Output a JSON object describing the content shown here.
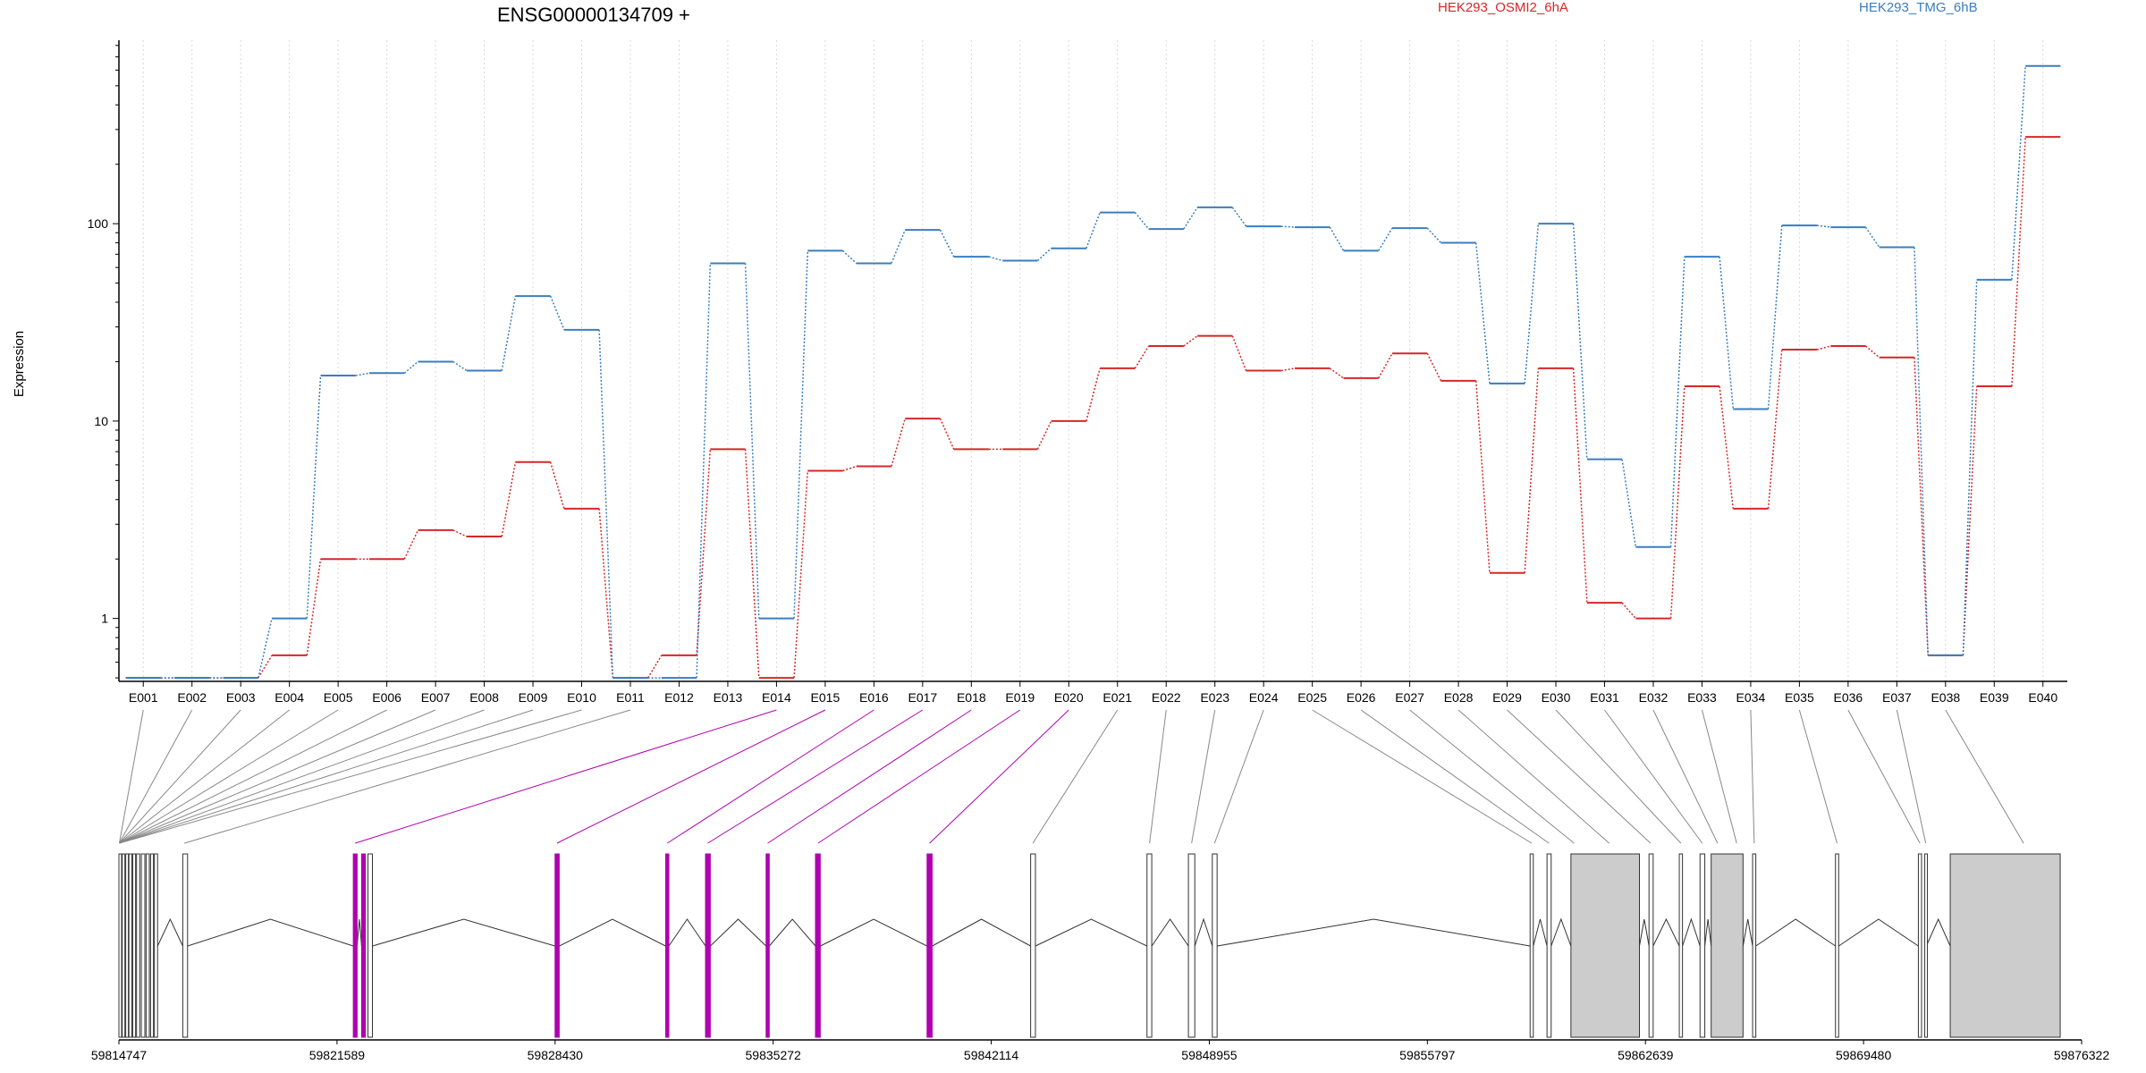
{
  "chart_data": {
    "type": "line",
    "title": "ENSG00000134709 +",
    "xlabel": "",
    "ylabel": "Expression",
    "y_scale": "log",
    "ylim": [
      0.48,
      850
    ],
    "y_ticks": [
      1,
      10,
      100
    ],
    "y_tick_labels": [
      "1",
      "10",
      "100"
    ],
    "grid": "vertical dotted per exon",
    "legend_position": "top",
    "categories": [
      "E001",
      "E002",
      "E003",
      "E004",
      "E005",
      "E006",
      "E007",
      "E008",
      "E009",
      "E010",
      "E011",
      "E012",
      "E013",
      "E014",
      "E015",
      "E016",
      "E017",
      "E018",
      "E019",
      "E020",
      "E021",
      "E022",
      "E023",
      "E024",
      "E025",
      "E026",
      "E027",
      "E028",
      "E029",
      "E030",
      "E031",
      "E032",
      "E033",
      "E034",
      "E035",
      "E036",
      "E037",
      "E038",
      "E039",
      "E040"
    ],
    "series": [
      {
        "name": "HEK293_OSMI2_6hA",
        "color": "#d62728",
        "values": [
          0.5,
          0.5,
          0.5,
          0.65,
          2.0,
          2.0,
          2.8,
          2.6,
          6.2,
          3.6,
          0.5,
          0.65,
          7.2,
          0.5,
          5.6,
          5.9,
          10.3,
          7.2,
          7.2,
          10.0,
          18.5,
          24.0,
          27.0,
          18.0,
          18.5,
          16.5,
          22.0,
          16.0,
          1.7,
          18.5,
          1.2,
          1.0,
          15.0,
          3.6,
          23.0,
          24.0,
          21.0,
          0.65,
          15.0,
          275.0
        ]
      },
      {
        "name": "HEK293_TMG_6hB",
        "color": "#3a7ebf",
        "values": [
          0.5,
          0.5,
          0.5,
          1.0,
          17.0,
          17.5,
          20.0,
          18.0,
          43.0,
          29.0,
          0.5,
          0.5,
          63.0,
          1.0,
          73.0,
          63.0,
          93.0,
          68.0,
          65.0,
          75.0,
          114.0,
          94.0,
          121.0,
          97.0,
          96.0,
          73.0,
          95.0,
          80.0,
          15.5,
          100.0,
          6.4,
          2.3,
          68.0,
          11.5,
          98.0,
          96.0,
          76.0,
          0.65,
          52.0,
          630.0
        ]
      }
    ]
  },
  "gene_model": {
    "coord_range": [
      59814747,
      59876322
    ],
    "coord_tick_labels": [
      "59814747",
      "59821589",
      "59828430",
      "59835272",
      "59842114",
      "59848955",
      "59855797",
      "59862639",
      "59869480",
      "59876322"
    ],
    "exon_color": "#ffffff",
    "highlight_color": "#b000b0",
    "shaded_color": "#cccccc"
  }
}
